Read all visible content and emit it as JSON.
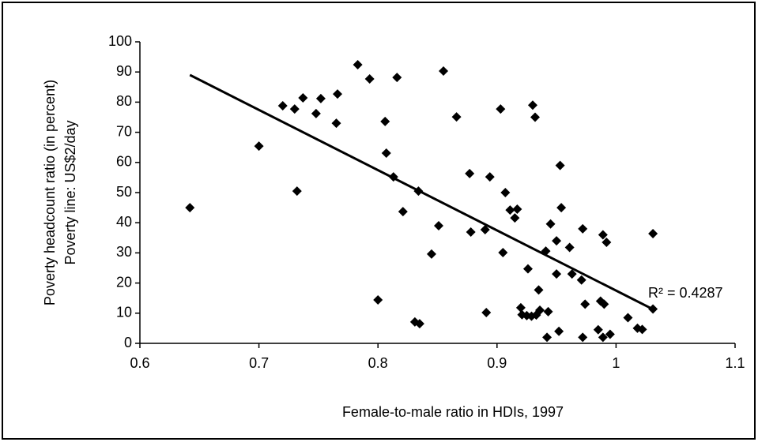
{
  "chart_data": {
    "type": "scatter",
    "x_label": "Female-to-male ratio in HDIs, 1997",
    "y_label": [
      "Poverty headcount ratio (in percent)",
      "Poverty line: US$2/day"
    ],
    "annotation": "R² = 0.4287",
    "color": "#000000",
    "x": [
      0.642,
      0.7,
      0.72,
      0.73,
      0.732,
      0.737,
      0.748,
      0.752,
      0.765,
      0.766,
      0.783,
      0.793,
      0.8,
      0.806,
      0.807,
      0.813,
      0.816,
      0.821,
      0.831,
      0.835,
      0.834,
      0.845,
      0.851,
      0.855,
      0.866,
      0.877,
      0.878,
      0.89,
      0.891,
      0.894,
      0.903,
      0.907,
      0.905,
      0.911,
      0.915,
      0.917,
      0.92,
      0.921,
      0.925,
      0.93,
      0.932,
      0.926,
      0.929,
      0.933,
      0.936,
      0.935,
      0.945,
      0.941,
      0.943,
      0.942,
      0.95,
      0.95,
      0.952,
      0.953,
      0.954,
      0.961,
      0.963,
      0.971,
      0.972,
      0.974,
      0.972,
      0.985,
      0.987,
      0.99,
      0.989,
      0.992,
      0.995,
      0.989,
      1.01,
      1.018,
      1.022,
      1.031,
      1.031
    ],
    "y": [
      45.0,
      65.4,
      78.8,
      77.7,
      50.5,
      81.4,
      76.2,
      81.2,
      73.0,
      82.7,
      92.4,
      87.7,
      14.4,
      73.6,
      63.1,
      55.2,
      88.2,
      43.7,
      7.1,
      6.5,
      50.5,
      29.6,
      39.0,
      90.3,
      75.1,
      56.3,
      36.9,
      37.7,
      10.2,
      55.2,
      77.7,
      50.0,
      30.1,
      44.2,
      41.6,
      44.5,
      11.8,
      9.5,
      9.2,
      79.0,
      75.0,
      24.7,
      9.0,
      9.4,
      11.0,
      17.7,
      39.6,
      30.6,
      10.5,
      2.0,
      34.0,
      23.0,
      4.0,
      59.0,
      45.0,
      31.8,
      23.0,
      21.0,
      38.0,
      13.0,
      2.0,
      4.5,
      14.0,
      13.0,
      36.0,
      33.5,
      3.0,
      2.0,
      8.5,
      5.0,
      4.6,
      36.4,
      11.4
    ],
    "trendline": {
      "x": [
        0.642,
        1.03
      ],
      "y": [
        89.0,
        11.5
      ]
    },
    "xlim": [
      0.6,
      1.1
    ],
    "xticks": [
      0.6,
      0.7,
      0.8,
      0.9,
      1,
      1.1
    ],
    "ylim": [
      0,
      100
    ],
    "yticks": [
      0,
      10,
      20,
      30,
      40,
      50,
      60,
      70,
      80,
      90,
      100
    ]
  }
}
